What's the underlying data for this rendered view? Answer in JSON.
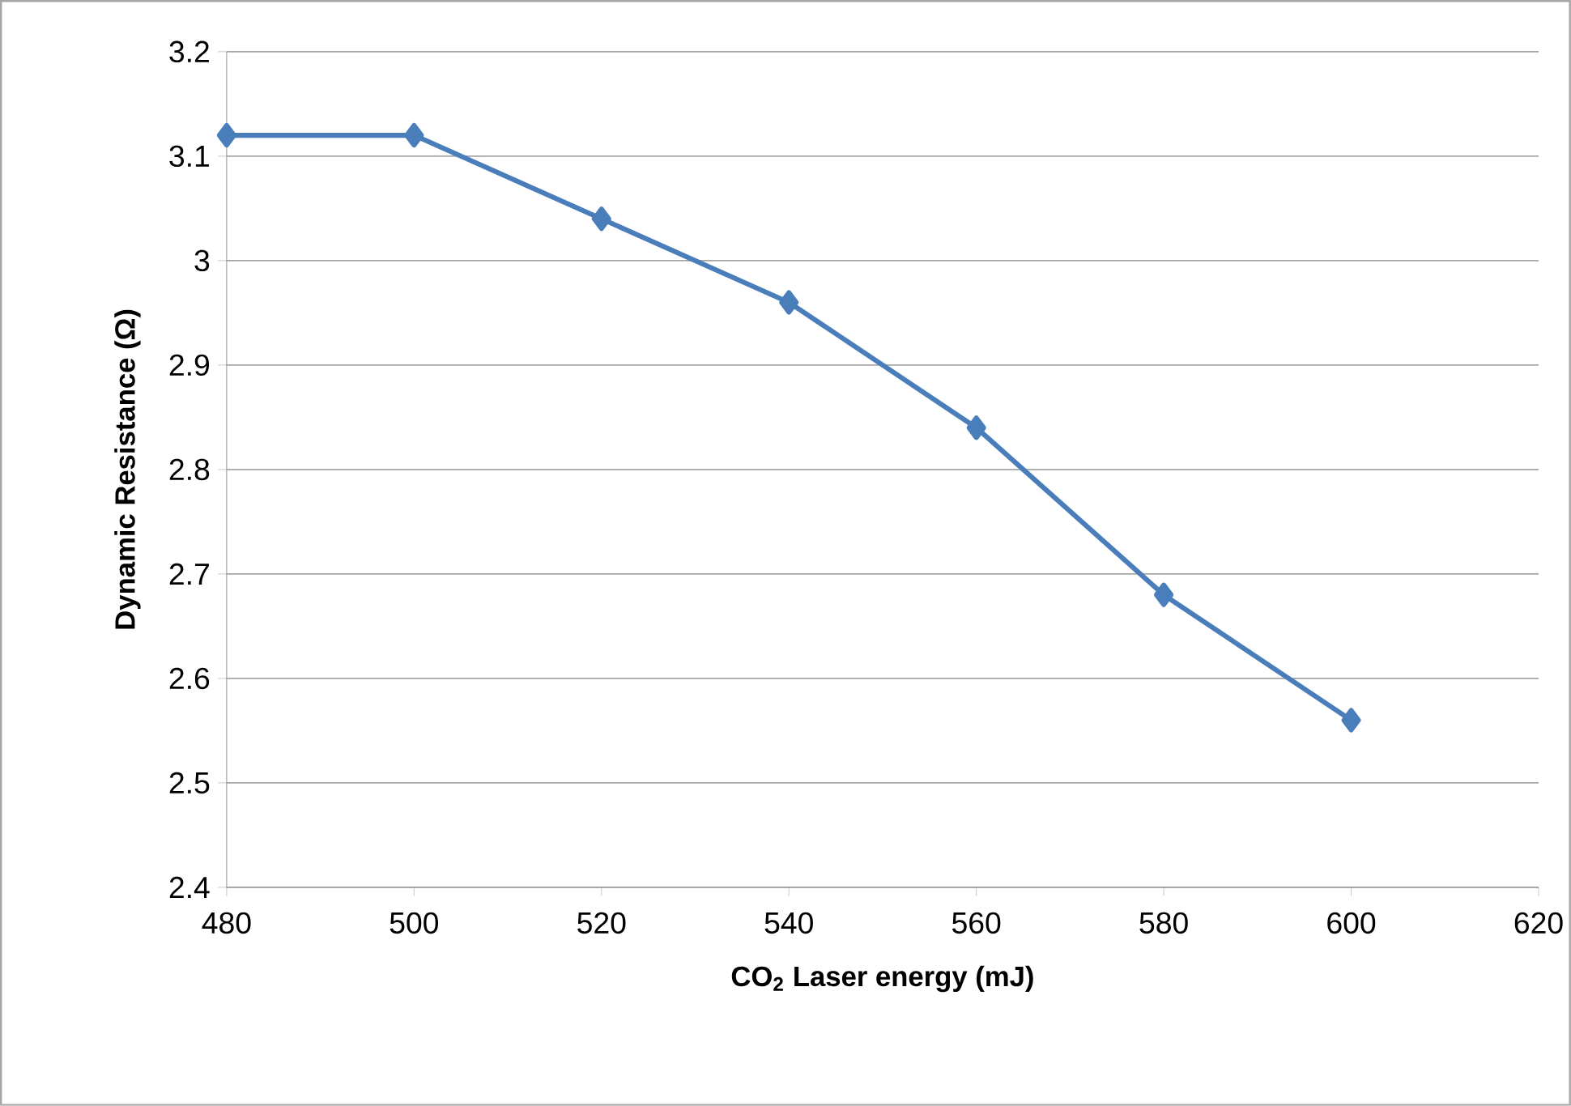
{
  "chart_data": {
    "type": "line",
    "xlabel": "CO$_{2}$ Laser energy (mJ)",
    "ylabel": "Dynamic Resistance (Ω)",
    "series": [
      {
        "color": "#4a7ebb",
        "x": [
          480,
          500,
          520,
          540,
          560,
          580,
          600
        ],
        "values": [
          3.12,
          3.12,
          3.04,
          2.96,
          2.84,
          2.68,
          2.56
        ]
      }
    ],
    "marker": "diamond",
    "line_style": "solid",
    "grid": "y",
    "xlim": [
      480,
      620
    ],
    "xticks": [
      480,
      500,
      520,
      540,
      560,
      580,
      600,
      620
    ],
    "ylim": [
      2.4,
      3.2
    ],
    "yticks": [
      2.4,
      2.5,
      2.6,
      2.7,
      2.8,
      2.9,
      3,
      3.1,
      3.2
    ]
  }
}
